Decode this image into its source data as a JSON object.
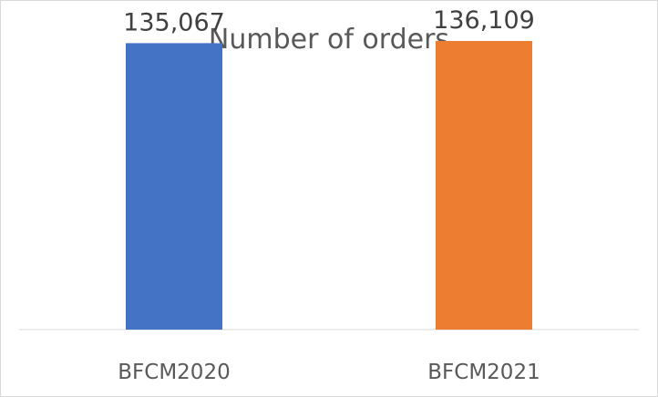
{
  "chart_data": {
    "type": "bar",
    "title": "Number of orders",
    "categories": [
      "BFCM2020",
      "BFCM2021"
    ],
    "values": [
      135067,
      136109
    ],
    "value_labels": [
      "135,067",
      "136,109"
    ],
    "bar_colors": [
      "#4472C4",
      "#ED7D31"
    ],
    "ylim": [
      0,
      155000
    ],
    "grid": false,
    "legend": "none",
    "xlabel": "",
    "ylabel": ""
  }
}
